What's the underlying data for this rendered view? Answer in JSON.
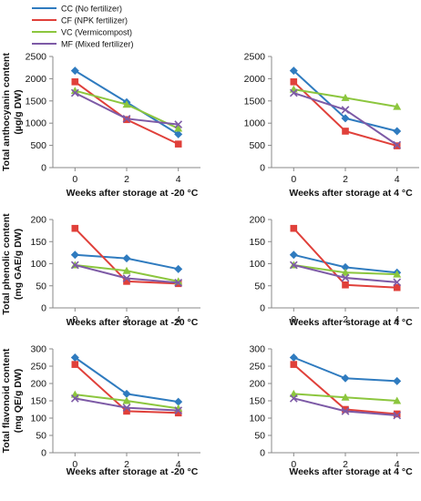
{
  "legend": [
    {
      "code": "CC",
      "label": "CC (No fertilizer)",
      "color": "#2f7bbf",
      "marker": "diamond"
    },
    {
      "code": "CF",
      "label": "CF (NPK fertilizer)",
      "color": "#e0403a",
      "marker": "square"
    },
    {
      "code": "VC",
      "label": "VC (Vermicompost)",
      "color": "#8cc63e",
      "marker": "triangle"
    },
    {
      "code": "MF",
      "label": "MF (Mixed fertilizer)",
      "color": "#7d5aa6",
      "marker": "x"
    }
  ],
  "row_ylabels": [
    [
      "Total anthocyanin content",
      "(µg/g DW)"
    ],
    [
      "Total phenolic content",
      "(mg GAE/g DW)"
    ],
    [
      "Total flavonoid content",
      "(mg QE/g DW)"
    ]
  ],
  "chart_data": [
    {
      "type": "line",
      "row": 0,
      "col": 0,
      "xlabel": "Weeks after storage at -20 °C",
      "x": [
        0,
        2,
        4
      ],
      "ylim": [
        0,
        2500
      ],
      "yticks": [
        0,
        500,
        1000,
        1500,
        2000,
        2500
      ],
      "series": [
        {
          "name": "CC",
          "values": [
            2180,
            1470,
            750
          ]
        },
        {
          "name": "CF",
          "values": [
            1930,
            1080,
            530
          ]
        },
        {
          "name": "VC",
          "values": [
            1730,
            1420,
            880
          ]
        },
        {
          "name": "MF",
          "values": [
            1680,
            1100,
            970
          ]
        }
      ]
    },
    {
      "type": "line",
      "row": 0,
      "col": 1,
      "xlabel": "Weeks after storage at 4 °C",
      "x": [
        0,
        2,
        4
      ],
      "ylim": [
        0,
        2500
      ],
      "yticks": [
        0,
        500,
        1000,
        1500,
        2000,
        2500
      ],
      "series": [
        {
          "name": "CC",
          "values": [
            2180,
            1110,
            820
          ]
        },
        {
          "name": "CF",
          "values": [
            1930,
            820,
            490
          ]
        },
        {
          "name": "VC",
          "values": [
            1760,
            1570,
            1370
          ]
        },
        {
          "name": "MF",
          "values": [
            1680,
            1300,
            510
          ]
        }
      ]
    },
    {
      "type": "line",
      "row": 1,
      "col": 0,
      "xlabel": "Weeks after storage at -20 °C",
      "x": [
        0,
        2,
        4
      ],
      "ylim": [
        0,
        200
      ],
      "yticks": [
        0,
        50,
        100,
        150,
        200
      ],
      "series": [
        {
          "name": "CC",
          "values": [
            120,
            112,
            88
          ]
        },
        {
          "name": "CF",
          "values": [
            180,
            60,
            55
          ]
        },
        {
          "name": "VC",
          "values": [
            97,
            84,
            60
          ]
        },
        {
          "name": "MF",
          "values": [
            97,
            67,
            57
          ]
        }
      ]
    },
    {
      "type": "line",
      "row": 1,
      "col": 1,
      "xlabel": "Weeks after storage at 4 °C",
      "x": [
        0,
        2,
        4
      ],
      "ylim": [
        0,
        200
      ],
      "yticks": [
        0,
        50,
        100,
        150,
        200
      ],
      "series": [
        {
          "name": "CC",
          "values": [
            120,
            92,
            80
          ]
        },
        {
          "name": "CF",
          "values": [
            180,
            52,
            46
          ]
        },
        {
          "name": "VC",
          "values": [
            97,
            80,
            76
          ]
        },
        {
          "name": "MF",
          "values": [
            97,
            68,
            58
          ]
        }
      ]
    },
    {
      "type": "line",
      "row": 2,
      "col": 0,
      "xlabel": "Weeks after storage at -20 °C",
      "x": [
        0,
        2,
        4
      ],
      "ylim": [
        0,
        300
      ],
      "yticks": [
        0,
        50,
        100,
        150,
        200,
        250,
        300
      ],
      "series": [
        {
          "name": "CC",
          "values": [
            275,
            170,
            147
          ]
        },
        {
          "name": "CF",
          "values": [
            255,
            120,
            115
          ]
        },
        {
          "name": "VC",
          "values": [
            168,
            150,
            128
          ]
        },
        {
          "name": "MF",
          "values": [
            157,
            130,
            122
          ]
        }
      ]
    },
    {
      "type": "line",
      "row": 2,
      "col": 1,
      "xlabel": "Weeks after storage at 4 °C",
      "x": [
        0,
        2,
        4
      ],
      "ylim": [
        0,
        300
      ],
      "yticks": [
        0,
        50,
        100,
        150,
        200,
        250,
        300
      ],
      "series": [
        {
          "name": "CC",
          "values": [
            275,
            215,
            207
          ]
        },
        {
          "name": "CF",
          "values": [
            255,
            125,
            112
          ]
        },
        {
          "name": "VC",
          "values": [
            170,
            160,
            150
          ]
        },
        {
          "name": "MF",
          "values": [
            157,
            120,
            108
          ]
        }
      ]
    }
  ]
}
